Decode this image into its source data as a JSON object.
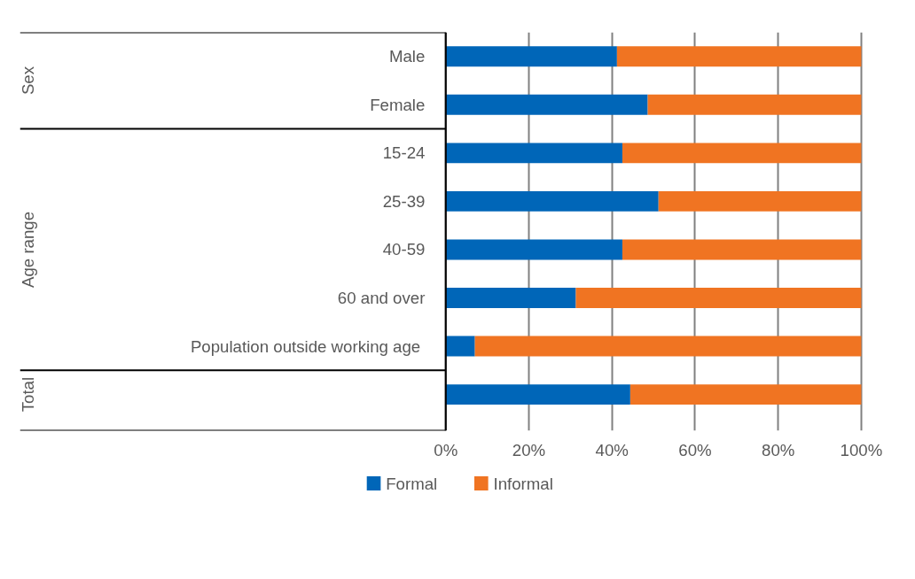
{
  "chart_data": {
    "type": "bar",
    "orientation": "horizontal",
    "stacked": true,
    "categories": [
      "Male",
      "Female",
      "15-24",
      "25-39",
      "40-59",
      "60 and over",
      "Population outside  working age",
      null
    ],
    "series": [
      {
        "name": "Formal",
        "color": "#0066b8",
        "values": [
          41.2,
          48.6,
          42.5,
          51.2,
          42.5,
          31.3,
          7.0,
          44.4
        ]
      },
      {
        "name": "Informal",
        "color": "#f07422",
        "values": [
          58.8,
          51.4,
          57.5,
          48.8,
          57.5,
          68.7,
          93.0,
          55.6
        ]
      }
    ],
    "xlim": [
      0,
      100
    ],
    "xticks": [
      {
        "value": 0,
        "label": "0%"
      },
      {
        "value": 20,
        "label": "20%"
      },
      {
        "value": 40,
        "label": "40%"
      },
      {
        "value": 60,
        "label": "60%"
      },
      {
        "value": 80,
        "label": "80%"
      },
      {
        "value": 100,
        "label": "100%"
      }
    ],
    "annotations": [
      "Sex",
      "Age range",
      "Total"
    ],
    "grid": "x",
    "legend": "bottom"
  }
}
